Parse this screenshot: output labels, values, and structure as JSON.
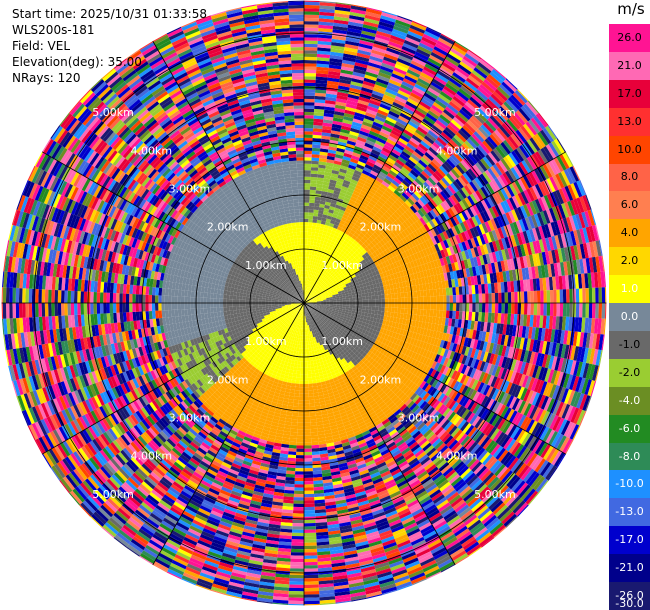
{
  "header": {
    "start_time": "Start time: 2025/10/31 01:33:58",
    "instrument": "WLS200s-181",
    "field": "Field: VEL",
    "elevation": "Elevation(deg): 35.00",
    "nrays": "NRays: 120"
  },
  "colorbar": {
    "unit": "m/s",
    "labels": [
      "26.0",
      "21.0",
      "17.0",
      "13.0",
      "10.0",
      "8.0",
      "6.0",
      "4.0",
      "2.0",
      "1.0",
      "0.0",
      "-1.0",
      "-2.0",
      "-4.0",
      "-6.0",
      "-8.0",
      "-10.0",
      "-13.0",
      "-17.0",
      "-21.0",
      "-26.0",
      "-30.0"
    ],
    "colors": [
      "#ff1493",
      "#ff69b4",
      "#e8003a",
      "#ff3030",
      "#ff4500",
      "#ff6347",
      "#ff7f50",
      "#ffa500",
      "#ffd700",
      "#ffff00",
      "#778899",
      "#696969",
      "#9acd32",
      "#6b8e23",
      "#228b22",
      "#2e8b57",
      "#1e90ff",
      "#4169e1",
      "#0000cd",
      "#00008b",
      "#191970"
    ]
  },
  "chart_data": {
    "type": "heatmap",
    "subtype": "polar_ppi",
    "field": "VEL",
    "unit": "m/s",
    "nrays": 120,
    "elevation_deg": 35.0,
    "range_ring_labels": [
      "1.00km",
      "2.00km",
      "3.00km",
      "4.00km",
      "5.00km"
    ],
    "range_rings_km": [
      1,
      2,
      3,
      4,
      5
    ],
    "max_range_km": 5.6,
    "colorbar_range": [
      -30.0,
      26.0
    ],
    "regions": [
      {
        "range_km": [
          0,
          1.5
        ],
        "description": "near-zero velocities",
        "values": [
          -2.0,
          0.0,
          2.0
        ]
      },
      {
        "range_km": [
          1.5,
          2.6
        ],
        "description": "mostly positive west/north, negative southeast",
        "values": [
          2.0,
          -1.0,
          -2.0
        ]
      },
      {
        "range_km": [
          2.6,
          5.6
        ],
        "description": "noise, all colors",
        "values": "random"
      }
    ]
  }
}
